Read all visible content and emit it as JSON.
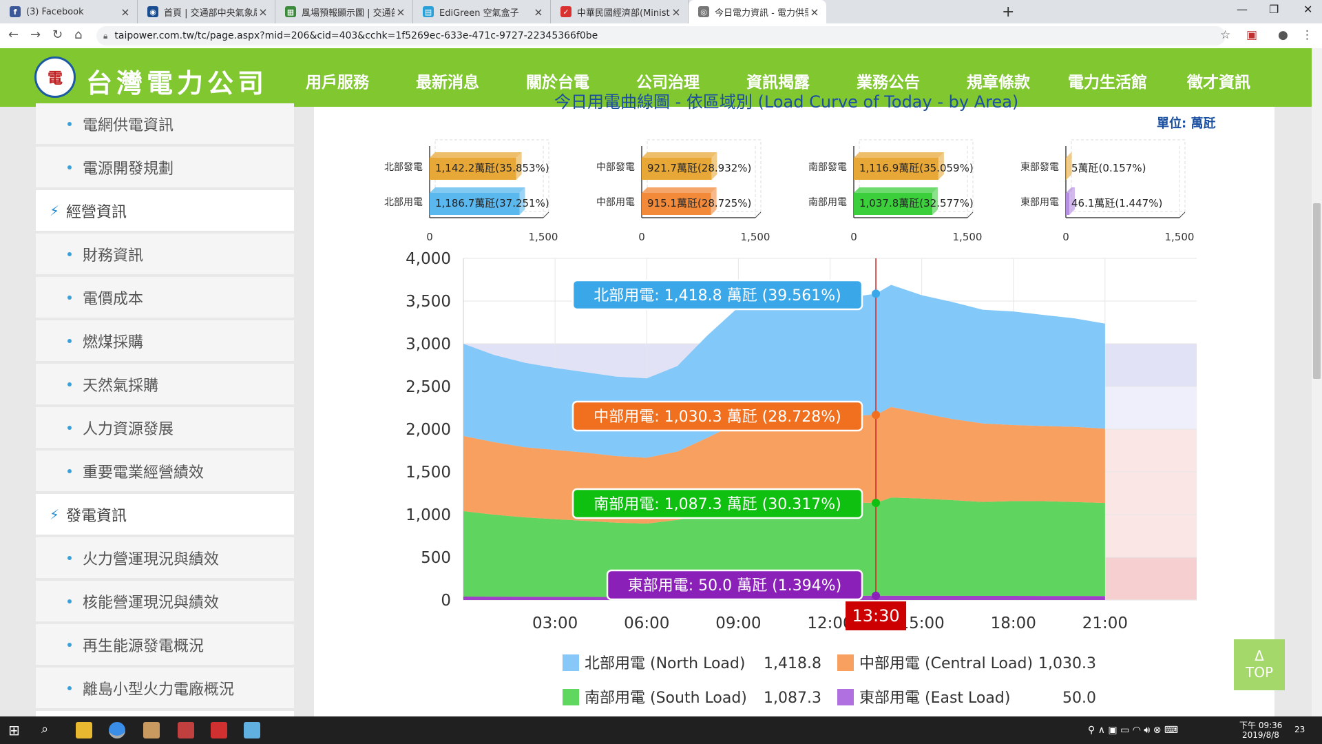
{
  "browser": {
    "tabs": [
      {
        "title": "(3) Facebook",
        "icon": "facebook-icon",
        "color": "#3b5998",
        "glyph": "f"
      },
      {
        "title": "首頁 | 交通部中央氣象局",
        "icon": "cwb-icon",
        "color": "#1a4d8f",
        "glyph": "◉"
      },
      {
        "title": "風場預報顯示圖 | 交通部中央氣象",
        "icon": "map-icon",
        "color": "#3c8a3c",
        "glyph": "▦"
      },
      {
        "title": "EdiGreen 空氣盒子",
        "icon": "edigreen-icon",
        "color": "#2aa0d8",
        "glyph": "▤"
      },
      {
        "title": "中華民國經濟部(Ministry of Econ",
        "icon": "moea-icon",
        "color": "#d93030",
        "glyph": "✓"
      },
      {
        "title": "今日電力資訊 - 電力供需資訊 - 台",
        "icon": "globe-icon",
        "color": "#777777",
        "glyph": "◎"
      }
    ],
    "url": "taipower.com.tw/tc/page.aspx?mid=206&cid=403&cchk=1f5269ec-633e-471c-9727-22345366f0be"
  },
  "site": {
    "name": "台灣電力公司",
    "nav": [
      "用戶服務",
      "最新消息",
      "關於台電",
      "公司治理",
      "資訊揭露",
      "業務公告",
      "規章條款",
      "電力生活館",
      "徵才資訊"
    ]
  },
  "sidebar": {
    "items": [
      {
        "label": "電網供電資訊",
        "kind": "sub"
      },
      {
        "label": "電源開發規劃",
        "kind": "sub"
      },
      {
        "label": "經營資訊",
        "kind": "cat"
      },
      {
        "label": "財務資訊",
        "kind": "sub"
      },
      {
        "label": "電價成本",
        "kind": "sub"
      },
      {
        "label": "燃煤採購",
        "kind": "sub"
      },
      {
        "label": "天然氣採購",
        "kind": "sub"
      },
      {
        "label": "人力資源發展",
        "kind": "sub"
      },
      {
        "label": "重要電業經營績效",
        "kind": "sub"
      },
      {
        "label": "發電資訊",
        "kind": "cat"
      },
      {
        "label": "火力營運現況與績效",
        "kind": "sub"
      },
      {
        "label": "核能營運現況與績效",
        "kind": "sub"
      },
      {
        "label": "再生能源發電概況",
        "kind": "sub"
      },
      {
        "label": "離島小型火力電廠概況",
        "kind": "sub"
      }
    ]
  },
  "page": {
    "title_fragment": "今日用電曲線圖 - 依區域別 (Load Curve of Today - by Area)",
    "unit": "單位: 萬瓩",
    "to_top": "TOP",
    "to_top_arrow": "Δ"
  },
  "chart_data": [
    {
      "type": "bar",
      "orientation": "horizontal",
      "xlim": [
        0,
        1500
      ],
      "ticks": [
        "0",
        "1,500"
      ],
      "panels": [
        {
          "region": "北部",
          "rows": [
            {
              "label": "北部發電",
              "value": 1142.2,
              "text": "1,142.2萬瓩(35.853%)",
              "color": "#e8a838"
            },
            {
              "label": "北部用電",
              "value": 1186.7,
              "text": "1,186.7萬瓩(37.251%)",
              "color": "#5ab8ef"
            }
          ]
        },
        {
          "region": "中部",
          "rows": [
            {
              "label": "中部發電",
              "value": 921.7,
              "text": "921.7萬瓩(28.932%)",
              "color": "#e8a838"
            },
            {
              "label": "中部用電",
              "value": 915.1,
              "text": "915.1萬瓩(28.725%)",
              "color": "#f28a3a"
            }
          ]
        },
        {
          "region": "南部",
          "rows": [
            {
              "label": "南部發電",
              "value": 1116.9,
              "text": "1,116.9萬瓩(35.059%)",
              "color": "#e8a838"
            },
            {
              "label": "南部用電",
              "value": 1037.8,
              "text": "1,037.8萬瓩(32.577%)",
              "color": "#3ccf3c"
            }
          ]
        },
        {
          "region": "東部",
          "rows": [
            {
              "label": "東部發電",
              "value": 5,
              "text": "5萬瓩(0.157%)",
              "color": "#e8a838"
            },
            {
              "label": "東部用電",
              "value": 46.1,
              "text": "46.1萬瓩(1.447%)",
              "color": "#b48ee0"
            }
          ]
        }
      ]
    },
    {
      "type": "area",
      "stacked": true,
      "ylim": [
        0,
        4000
      ],
      "yticks": [
        0,
        500,
        1000,
        1500,
        2000,
        2500,
        3000,
        3500,
        4000
      ],
      "ytick_labels": [
        "0",
        "500",
        "1,000",
        "1,500",
        "2,000",
        "2,500",
        "3,000",
        "3,500",
        "4,000"
      ],
      "xlim": [
        0,
        24
      ],
      "xticks": [
        3,
        6,
        9,
        12,
        15,
        18,
        21
      ],
      "xtick_labels": [
        "03:00",
        "06:00",
        "09:00",
        "12:00",
        "15:00",
        "18:00",
        "21:00"
      ],
      "x": [
        0,
        1,
        2,
        3,
        4,
        5,
        6,
        7,
        8,
        9,
        10,
        11,
        12,
        13,
        13.5,
        14,
        15,
        16,
        17,
        18,
        19,
        20,
        21
      ],
      "series": [
        {
          "name": "東部用電 (East Load)",
          "color": "#a040c8",
          "values": [
            40,
            39,
            38,
            37,
            36,
            35,
            35,
            38,
            42,
            47,
            49,
            50,
            49,
            50,
            50,
            50,
            49,
            49,
            48,
            48,
            47,
            47,
            46
          ]
        },
        {
          "name": "南部用電 (South Load)",
          "color": "#5fd45f",
          "values": [
            1000,
            960,
            930,
            910,
            890,
            870,
            860,
            900,
            960,
            1050,
            1090,
            1100,
            1080,
            1090,
            1087.3,
            1150,
            1140,
            1120,
            1100,
            1110,
            1110,
            1100,
            1090
          ]
        },
        {
          "name": "中部用電 (Central Load)",
          "color": "#f8a060",
          "values": [
            880,
            850,
            820,
            810,
            800,
            780,
            770,
            800,
            900,
            980,
            1000,
            1010,
            1000,
            1020,
            1030.3,
            1060,
            1000,
            950,
            920,
            890,
            880,
            880,
            870
          ]
        },
        {
          "name": "北部用電 (North Load)",
          "color": "#82c8f8",
          "values": [
            1080,
            1020,
            990,
            960,
            940,
            930,
            930,
            1000,
            1200,
            1350,
            1390,
            1400,
            1390,
            1400,
            1418.8,
            1430,
            1380,
            1370,
            1330,
            1330,
            1300,
            1270,
            1230
          ]
        }
      ],
      "reference_bands": [
        {
          "y0": 3000,
          "y1": 2500,
          "color": "#e0e0f8"
        },
        {
          "y0": 2500,
          "y1": 2000,
          "color": "#eeeefc"
        }
      ],
      "cursor": {
        "x": 13.5,
        "label": "13:30"
      },
      "tooltips": [
        {
          "text": "北部用電: 1,418.8 萬瓩 (39.561%)",
          "color": "#3aa8e8"
        },
        {
          "text": "中部用電: 1,030.3 萬瓩 (28.728%)",
          "color": "#f07020"
        },
        {
          "text": "南部用電: 1,087.3 萬瓩 (30.317%)",
          "color": "#10c010"
        },
        {
          "text": "東部用電: 50.0 萬瓩 (1.394%)",
          "color": "#8a20b8"
        }
      ],
      "legend": [
        {
          "name": "北部用電 (North Load)",
          "value": "1,418.8",
          "color": "#88c8f8"
        },
        {
          "name": "中部用電 (Central Load)",
          "value": "1,030.3",
          "color": "#f8a060"
        },
        {
          "name": "南部用電 (South Load)",
          "value": "1,087.3",
          "color": "#60d860"
        },
        {
          "name": "東部用電 (East Load)",
          "value": "50.0",
          "color": "#b070e0"
        }
      ]
    }
  ],
  "taskbar": {
    "time": "下午 09:36",
    "date": "2019/8/8",
    "notifications": "23"
  }
}
